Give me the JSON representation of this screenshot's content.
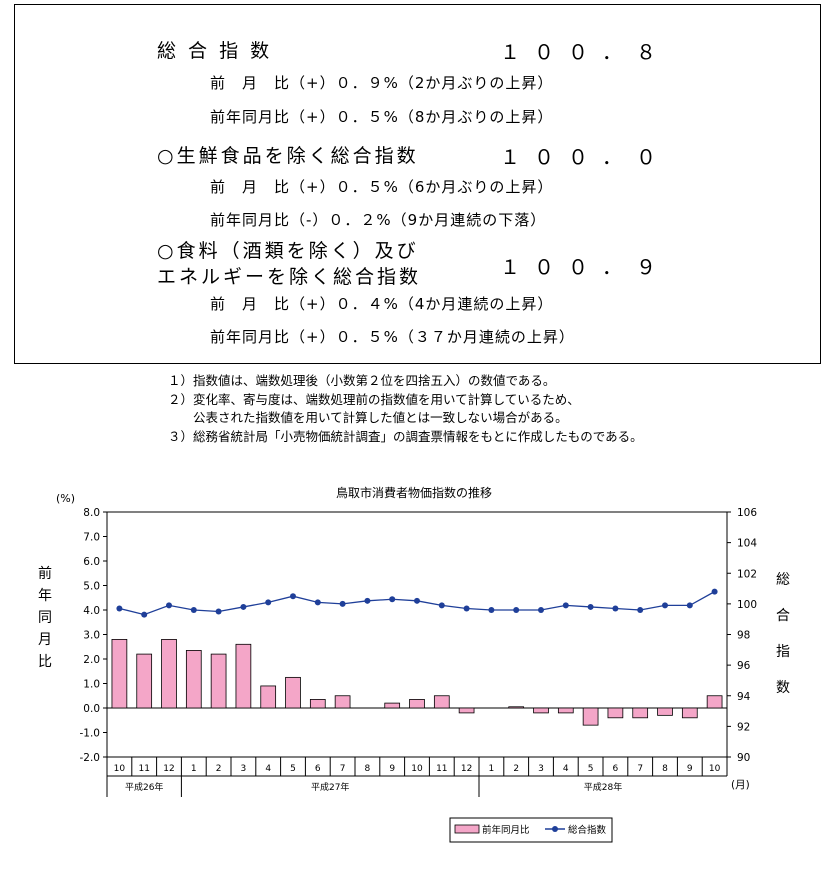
{
  "summary": {
    "overall": {
      "label": "総 合 指 数",
      "value": "１００．８",
      "mom": "前　月　比（+）０．９%（2か月ぶりの上昇）",
      "yoy": "前年同月比（+）０．５%（8か月ぶりの上昇）"
    },
    "core": {
      "label": "○生鮮食品を除く総合指数",
      "value": "１００．０",
      "mom": "前　月　比（+）０．５%（6か月ぶりの上昇）",
      "yoy": "前年同月比（-）０．２%（9か月連続の下落）"
    },
    "core_core": {
      "label_line1": "○食料（酒類を除く）及び",
      "label_line2": "エネルギーを除く総合指数",
      "value": "１００．９",
      "mom": "前　月　比（+）０．４%（4か月連続の上昇）",
      "yoy": "前年同月比（+）０．５%（３７か月連続の上昇）"
    }
  },
  "notes": [
    "１）指数値は、端数処理後（小数第２位を四捨五入）の数値である。",
    "２）変化率、寄与度は、端数処理前の指数値を用いて計算しているため、",
    "　　公表された指数値を用いて計算した値とは一致しない場合がある。",
    "３）総務省統計局「小売物価統計調査」の調査票情報をもとに作成したものである。"
  ],
  "chart_data": {
    "type": "bar+line",
    "title": "鳥取市消費者物価指数の推移",
    "y_left_unit": "(%)",
    "y_left_label": [
      "前",
      "年",
      "同",
      "月",
      "比"
    ],
    "y_right_label": [
      "総",
      "合",
      "指",
      "数"
    ],
    "x_unit": "(月)",
    "categories": [
      "10",
      "11",
      "12",
      "1",
      "2",
      "3",
      "4",
      "5",
      "6",
      "7",
      "8",
      "9",
      "10",
      "11",
      "12",
      "1",
      "2",
      "3",
      "4",
      "5",
      "6",
      "7",
      "8",
      "9",
      "10"
    ],
    "year_groups": [
      {
        "label": "平成26年",
        "count": 3
      },
      {
        "label": "平成27年",
        "count": 12
      },
      {
        "label": "平成28年",
        "count": 10
      }
    ],
    "y_left_ticks": [
      "8.0",
      "7.0",
      "6.0",
      "5.0",
      "4.0",
      "3.0",
      "2.0",
      "1.0",
      "0.0",
      "-1.0",
      "-2.0"
    ],
    "y_left_range": [
      -2,
      8
    ],
    "y_right_ticks": [
      "106",
      "104",
      "102",
      "100",
      "98",
      "96",
      "94",
      "92",
      "90"
    ],
    "y_right_range": [
      90,
      106
    ],
    "series": [
      {
        "name": "前年同月比",
        "type": "bar",
        "axis": "left",
        "color": "#f4a6c8",
        "values": [
          2.8,
          2.2,
          2.8,
          2.35,
          2.2,
          2.6,
          0.9,
          1.25,
          0.35,
          0.5,
          0.0,
          0.2,
          0.35,
          0.5,
          -0.2,
          0.0,
          0.05,
          -0.2,
          -0.2,
          -0.7,
          -0.4,
          -0.4,
          -0.3,
          -0.4,
          0.5
        ]
      },
      {
        "name": "総合指数",
        "type": "line",
        "axis": "right",
        "color": "#1f3f99",
        "values": [
          99.7,
          99.3,
          99.9,
          99.6,
          99.5,
          99.8,
          100.1,
          100.5,
          100.1,
          100.0,
          100.2,
          100.3,
          100.2,
          99.9,
          99.7,
          99.6,
          99.6,
          99.6,
          99.9,
          99.8,
          99.7,
          99.6,
          99.9,
          99.9,
          100.8
        ]
      }
    ],
    "legend": {
      "position": "bottom-right"
    }
  }
}
